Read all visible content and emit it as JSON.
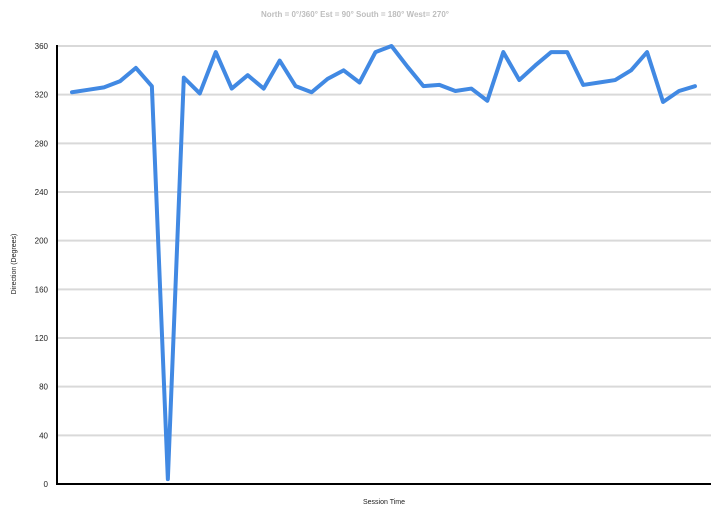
{
  "chart_data": {
    "type": "line",
    "title": "North = 0°/360° Est = 90° South = 180° West= 270°",
    "xlabel": "Session Time",
    "ylabel": "Direction (Degrees)",
    "ylim": [
      0,
      360
    ],
    "yticks": [
      0,
      40,
      80,
      120,
      160,
      200,
      240,
      280,
      320,
      360
    ],
    "grid": true,
    "series": [
      {
        "values": [
          322,
          324,
          326,
          331,
          342,
          327,
          4,
          334,
          321,
          355,
          325,
          336,
          325,
          348,
          327,
          322,
          333,
          340,
          330,
          355,
          360,
          343,
          327,
          328,
          323,
          325,
          315,
          355,
          332,
          344,
          355,
          355,
          328,
          330,
          332,
          340,
          355,
          314,
          323,
          327
        ]
      }
    ]
  },
  "colors": {
    "series": "#4189e3",
    "grid": "#d9d9d9",
    "axis": "#000000",
    "title": "#bdbdbd"
  }
}
